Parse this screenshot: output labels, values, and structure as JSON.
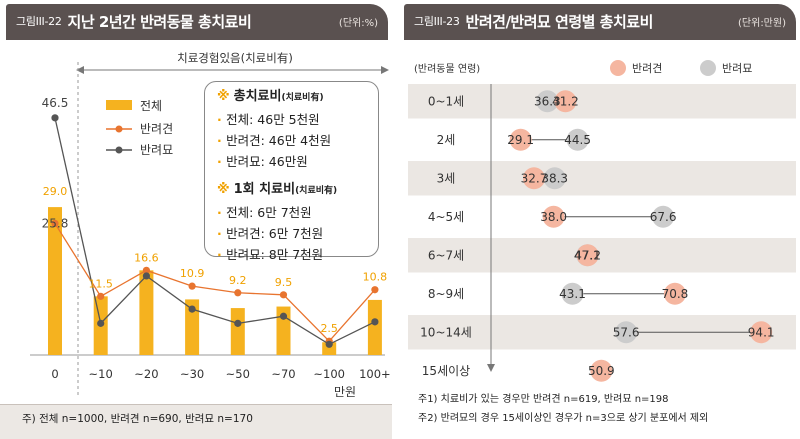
{
  "left": {
    "fig_label": "그림III-22",
    "title": "지난 2년간 반려동물 총치료비",
    "unit": "(단위:%)",
    "bracket_label": "치료경험있음(치료비有)",
    "x_unit": "만원",
    "legend": {
      "total": "전체",
      "dog": "반려견",
      "cat": "반려묘"
    },
    "callout": {
      "mark": "※",
      "head1": "총치료비",
      "head1_small": "(치료비有)",
      "items1": [
        "전체: 46만 5천원",
        "반려견: 46만 4천원",
        "반려묘: 46만원"
      ],
      "head2": "1회 치료비",
      "head2_small": "(치료비有)",
      "items2": [
        "전체: 6만 7천원",
        "반려견: 6만 7천원",
        "반려묘: 8만 7천원"
      ]
    },
    "footnote": "주) 전체 n=1000, 반려견 n=690, 반려묘 n=170",
    "colors": {
      "bar": "#f5b21f",
      "dog": "#e8742f",
      "cat": "#555555",
      "title_bg": "#5a5150"
    }
  },
  "right": {
    "fig_label": "그림III-23",
    "title": "반려견/반려묘 연령별 총치료비",
    "unit": "(단위:만원)",
    "axis_header": "(반려동물 연령)",
    "legend": {
      "dog": "반려견",
      "cat": "반려묘"
    },
    "footnotes": [
      "주1) 치료비가 있는 경우만 반려견 n=619, 반려묘 n=198",
      "주2) 반려묘의 경우 15세이상인 경우가 n=3으로 상기 분포에서 제외"
    ],
    "colors": {
      "dog": "#f5b6a0",
      "cat": "#cccccc",
      "band": "#ebe7e3"
    }
  },
  "chart_data": [
    {
      "type": "bar",
      "title": "지난 2년간 반려동물 총치료비",
      "xlabel": "만원",
      "categories": [
        "0",
        "~10",
        "~20",
        "~30",
        "~50",
        "~70",
        "~100",
        "100+"
      ],
      "series": [
        {
          "name": "전체",
          "type": "bar",
          "values": [
            29.0,
            11.5,
            16.6,
            10.9,
            9.2,
            9.5,
            2.5,
            10.8
          ]
        },
        {
          "name": "반려견",
          "type": "line",
          "values": [
            25.8,
            11.5,
            16.6,
            13.5,
            12.2,
            11.8,
            2.7,
            12.8
          ]
        },
        {
          "name": "반려묘",
          "type": "line",
          "values": [
            46.5,
            6.2,
            15.5,
            9.0,
            6.2,
            7.6,
            2.1,
            6.5
          ]
        }
      ],
      "data_labels": [
        "29.0",
        "11.5",
        "16.6",
        "10.9",
        "9.2",
        "9.5",
        "2.5",
        "10.8"
      ],
      "extra_labels": [
        {
          "text": "46.5",
          "series": "반려묘",
          "index": 0
        },
        {
          "text": "25.8",
          "series": "반려견",
          "index": 0
        }
      ],
      "ylim": [
        0,
        50
      ]
    },
    {
      "type": "scatter",
      "title": "반려견/반려묘 연령별 총치료비",
      "categories": [
        "0~1세",
        "2세",
        "3세",
        "4~5세",
        "6~7세",
        "8~9세",
        "10~14세",
        "15세이상"
      ],
      "series": [
        {
          "name": "반려견",
          "values": [
            41.2,
            29.1,
            32.7,
            38.0,
            47.2,
            70.8,
            94.1,
            50.9
          ]
        },
        {
          "name": "반려묘",
          "values": [
            36.3,
            44.5,
            38.3,
            67.6,
            47.1,
            43.1,
            57.6,
            null
          ]
        }
      ],
      "xlim": [
        20,
        100
      ]
    }
  ]
}
